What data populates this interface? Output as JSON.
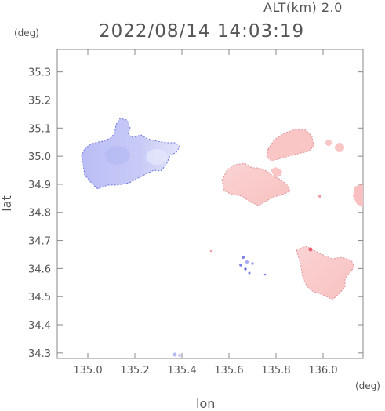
{
  "header": {
    "altitude": "ALT(km) 2.0",
    "datetime": "2022/08/14 14:03:19",
    "y_unit": "(deg)",
    "x_unit": "(deg)"
  },
  "axes": {
    "xlabel": "lon",
    "ylabel": "lat",
    "x_range": [
      134.87,
      136.17
    ],
    "y_range": [
      34.28,
      35.38
    ],
    "x_ticks": [
      "135.0",
      "135.2",
      "135.4",
      "135.6",
      "135.8",
      "136.0"
    ],
    "y_ticks": [
      "35.3",
      "35.2",
      "35.1",
      "35.0",
      "34.9",
      "34.8",
      "34.7",
      "34.6",
      "34.5",
      "34.4",
      "34.3"
    ]
  },
  "colors": {
    "approaching": "#c9ccf7",
    "receding": "#fbc8c8",
    "frame": "#888888"
  }
}
